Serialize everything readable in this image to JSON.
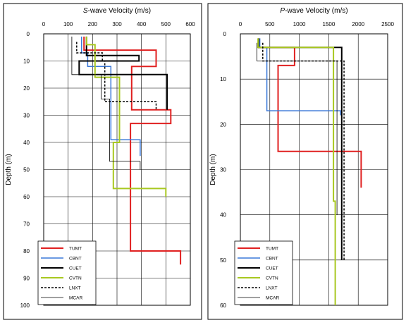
{
  "chart_data": [
    {
      "type": "line",
      "title": "S-wave Velocity (m/s)",
      "title_italic_prefix": "S",
      "title_rest": "-wave Velocity (m/s)",
      "xlabel": "S-wave Velocity (m/s)",
      "ylabel": "Depth (m)",
      "xlim": [
        0,
        600
      ],
      "ylim": [
        0,
        100
      ],
      "y_reversed": true,
      "x_axis_position": "top",
      "grid": true,
      "xticks": [
        0,
        100,
        200,
        300,
        400,
        500,
        600
      ],
      "yticks": [
        0,
        10,
        20,
        30,
        40,
        50,
        60,
        70,
        80,
        90,
        100
      ],
      "legend_position": "bottom-left",
      "series": [
        {
          "name": "TUMT",
          "color": "#e02020",
          "dash": "solid",
          "width": 2,
          "x": [
            165,
            165,
            460,
            460,
            360,
            360,
            520,
            520,
            355,
            355,
            560,
            560
          ],
          "y": [
            1,
            6,
            6,
            12,
            12,
            28,
            28,
            33,
            33,
            80,
            80,
            85
          ]
        },
        {
          "name": "CBNT",
          "color": "#3a78d8",
          "dash": "solid",
          "width": 1.5,
          "x": [
            155,
            155,
            180,
            180,
            275,
            275,
            395,
            395
          ],
          "y": [
            1,
            7,
            7,
            12,
            12,
            39,
            39,
            45
          ]
        },
        {
          "name": "CUET",
          "color": "#000000",
          "dash": "solid",
          "width": 2,
          "x": [
            175,
            175,
            390,
            390,
            145,
            145,
            505,
            505
          ],
          "y": [
            1,
            8,
            8,
            10,
            10,
            15,
            15,
            28
          ]
        },
        {
          "name": "CVTN",
          "color": "#a8c820",
          "dash": "solid",
          "width": 2,
          "x": [
            175,
            175,
            210,
            210,
            310,
            310,
            285,
            285,
            500,
            500
          ],
          "y": [
            1,
            4,
            4,
            16,
            16,
            40,
            40,
            57,
            57,
            60
          ]
        },
        {
          "name": "LNXT",
          "color": "#000000",
          "dash": "dashed",
          "width": 1.5,
          "x": [
            135,
            135,
            240,
            240,
            250,
            250,
            460,
            460
          ],
          "y": [
            3,
            7,
            7,
            10,
            10,
            25,
            25,
            28
          ]
        },
        {
          "name": "MCAR",
          "color": "#000000",
          "dash": "solid",
          "width": 0.8,
          "x": [
            115,
            115,
            235,
            235,
            270,
            270,
            395,
            395
          ],
          "y": [
            1,
            15,
            15,
            24,
            24,
            47,
            47,
            50
          ]
        }
      ]
    },
    {
      "type": "line",
      "title": "P-wave Velocity (m/s)",
      "title_italic_prefix": "P",
      "title_rest": "-wave Velocity (m/s)",
      "xlabel": "P-wave Velocity (m/s)",
      "ylabel": "Depth (m)",
      "xlim": [
        0,
        2500
      ],
      "ylim": [
        0,
        60
      ],
      "y_reversed": true,
      "x_axis_position": "top",
      "grid": true,
      "xticks": [
        0,
        500,
        1000,
        1500,
        2000,
        2500
      ],
      "yticks": [
        0,
        10,
        20,
        30,
        40,
        50,
        60
      ],
      "legend_position": "bottom-left",
      "series": [
        {
          "name": "TUMT",
          "color": "#e02020",
          "dash": "solid",
          "width": 2,
          "x": [
            310,
            310,
            920,
            920,
            640,
            640,
            2050,
            2050
          ],
          "y": [
            1,
            3,
            3,
            7,
            7,
            26,
            26,
            34
          ]
        },
        {
          "name": "CBNT",
          "color": "#3a78d8",
          "dash": "solid",
          "width": 1.5,
          "x": [
            330,
            330,
            450,
            450,
            1700,
            1700
          ],
          "y": [
            1,
            3,
            3,
            17,
            17,
            18
          ]
        },
        {
          "name": "CUET",
          "color": "#000000",
          "dash": "solid",
          "width": 2,
          "x": [
            310,
            310,
            1720,
            1720
          ],
          "y": [
            1,
            3,
            3,
            50
          ]
        },
        {
          "name": "CVTN",
          "color": "#a8c820",
          "dash": "solid",
          "width": 2,
          "x": [
            300,
            300,
            1580,
            1580,
            1610,
            1610
          ],
          "y": [
            1,
            3,
            3,
            37,
            37,
            60
          ]
        },
        {
          "name": "LNXT",
          "color": "#000000",
          "dash": "dashed",
          "width": 1.5,
          "x": [
            380,
            380,
            1760,
            1760
          ],
          "y": [
            2,
            6,
            6,
            50
          ]
        },
        {
          "name": "MCAR",
          "color": "#000000",
          "dash": "solid",
          "width": 0.8,
          "x": [
            280,
            280,
            1640,
            1640
          ],
          "y": [
            2,
            6,
            6,
            40
          ]
        }
      ]
    }
  ]
}
